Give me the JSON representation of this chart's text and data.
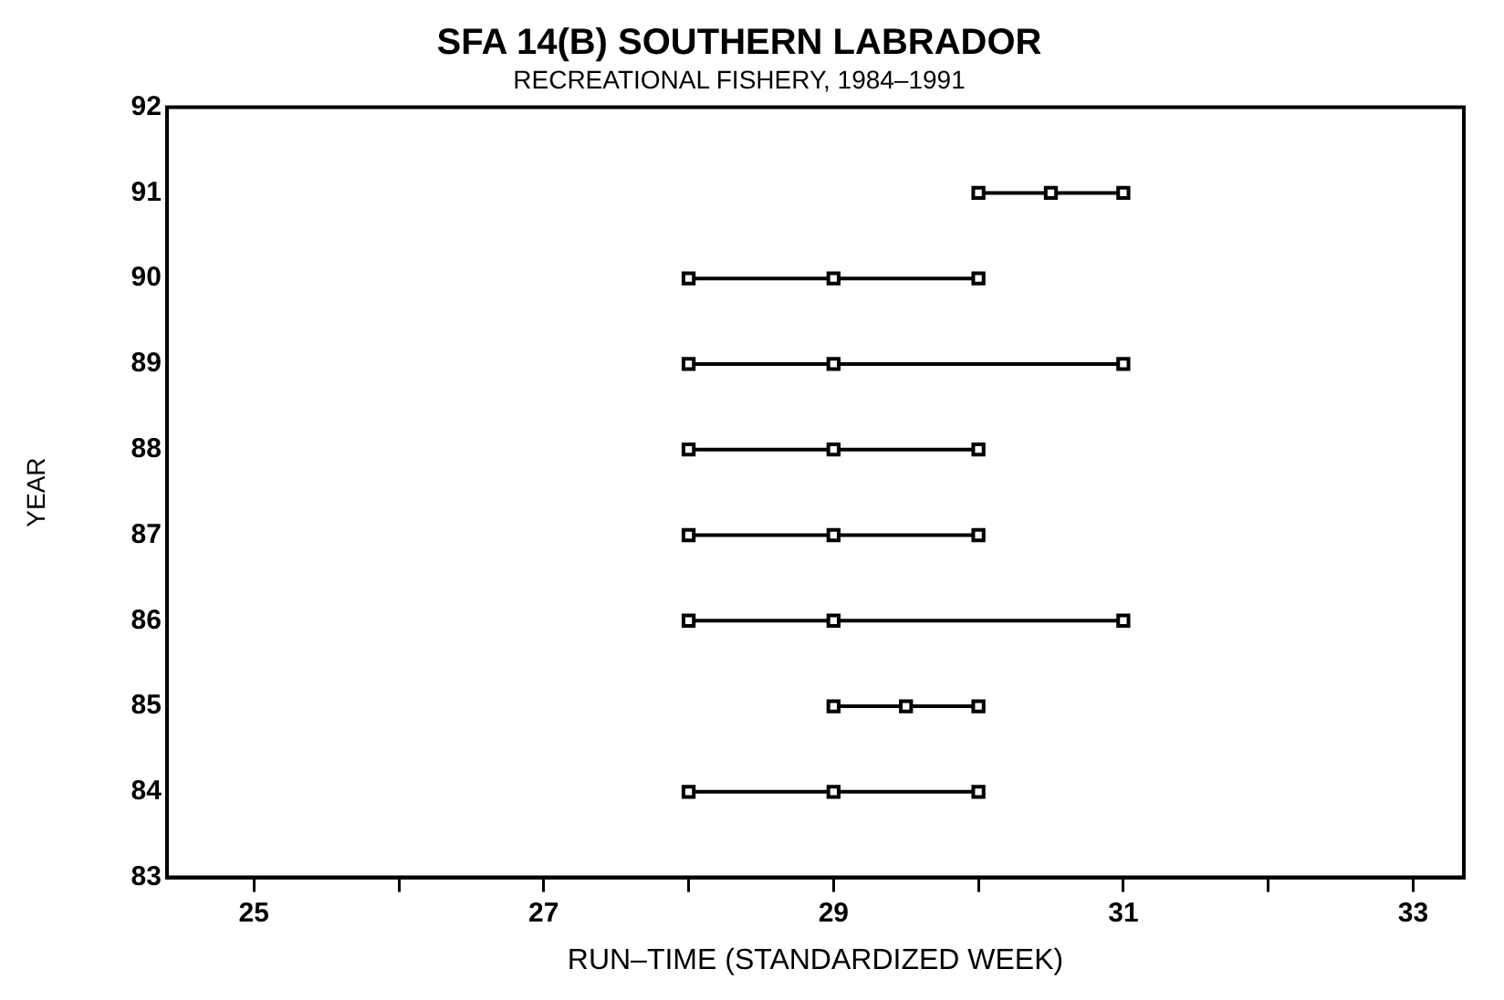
{
  "chart_data": {
    "type": "line",
    "title": "SFA 14(B) SOUTHERN LABRADOR",
    "subtitle": "RECREATIONAL FISHERY, 1984–1991",
    "xlabel": "RUN–TIME (STANDARDIZED WEEK)",
    "ylabel": "YEAR",
    "xlim": [
      24.4,
      33.35
    ],
    "xticks": [
      25,
      {
        "value": 26,
        "label": null
      },
      27,
      {
        "value": 28,
        "label": null
      },
      29,
      {
        "value": 30,
        "label": null
      },
      31,
      {
        "value": 32,
        "label": null
      },
      33
    ],
    "ylim": [
      83,
      92
    ],
    "yticks": [
      83,
      84,
      85,
      86,
      87,
      88,
      89,
      90,
      91,
      92
    ],
    "grid": false,
    "legend": false,
    "marker": "square",
    "line_style": "solid",
    "series": [
      {
        "color": "#000000",
        "x": [
          28,
          29,
          30
        ],
        "values": [
          84,
          84,
          84
        ]
      },
      {
        "color": "#000000",
        "x": [
          29,
          29.5,
          30
        ],
        "values": [
          85,
          85,
          85
        ]
      },
      {
        "color": "#000000",
        "x": [
          28,
          29,
          31
        ],
        "values": [
          86,
          86,
          86
        ]
      },
      {
        "color": "#000000",
        "x": [
          28,
          29,
          30
        ],
        "values": [
          87,
          87,
          87
        ]
      },
      {
        "color": "#000000",
        "x": [
          28,
          29,
          30
        ],
        "values": [
          88,
          88,
          88
        ]
      },
      {
        "color": "#000000",
        "x": [
          28,
          29,
          31
        ],
        "values": [
          89,
          89,
          89
        ]
      },
      {
        "color": "#000000",
        "x": [
          28,
          29,
          30
        ],
        "values": [
          90,
          90,
          90
        ]
      },
      {
        "color": "#000000",
        "x": [
          30,
          30.5,
          31
        ],
        "values": [
          91,
          91,
          91
        ]
      }
    ]
  }
}
